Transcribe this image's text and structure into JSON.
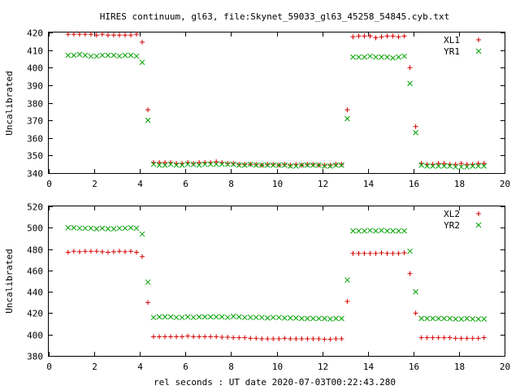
{
  "title": "HIRES continuum, gl63, file:Skynet_59033_gl63_45258_54845.cyb.txt",
  "xlabel": "rel seconds : UT date 2020-07-03T00:22:43.280",
  "colors": {
    "plus_series": "#d40000",
    "cross_series": "#00a000"
  },
  "chart_data": [
    {
      "type": "scatter",
      "ylabel": "Uncalibrated",
      "xlim": [
        0,
        20
      ],
      "ylim": [
        340,
        420
      ],
      "xticks": [
        0,
        2,
        4,
        6,
        8,
        10,
        12,
        14,
        16,
        18,
        20
      ],
      "yticks": [
        340,
        350,
        360,
        370,
        380,
        390,
        400,
        410,
        420
      ],
      "legend_position": "top-right",
      "series": [
        {
          "name": "XL1",
          "marker": "plus",
          "x": [
            0.85,
            1.1,
            1.35,
            1.6,
            1.85,
            2.1,
            2.35,
            2.6,
            2.85,
            3.1,
            3.35,
            3.6,
            3.85,
            4.1,
            4.35,
            4.6,
            4.85,
            5.1,
            5.35,
            5.6,
            5.85,
            6.1,
            6.35,
            6.6,
            6.85,
            7.1,
            7.35,
            7.6,
            7.85,
            8.1,
            8.35,
            8.6,
            8.85,
            9.1,
            9.35,
            9.6,
            9.85,
            10.1,
            10.35,
            10.6,
            10.85,
            11.1,
            11.35,
            11.6,
            11.85,
            12.1,
            12.35,
            12.6,
            12.85,
            13.1,
            13.35,
            13.6,
            13.85,
            14.1,
            14.35,
            14.6,
            14.85,
            15.1,
            15.35,
            15.6,
            15.85,
            16.1,
            16.35,
            16.6,
            16.85,
            17.1,
            17.35,
            17.6,
            17.85,
            18.1,
            18.35,
            18.6,
            18.85,
            19.1
          ],
          "y": [
            419,
            419,
            419,
            419,
            419,
            418.5,
            419,
            418.5,
            418.5,
            418.5,
            418.5,
            418.5,
            419,
            414.5,
            376,
            346,
            346,
            346,
            346,
            345.5,
            345.5,
            346,
            345.5,
            346,
            346,
            346,
            346.5,
            346,
            345.5,
            345.5,
            345,
            345,
            345,
            345,
            344.5,
            345,
            345,
            344.5,
            345,
            344.5,
            345,
            344.5,
            345,
            345,
            344.5,
            344.5,
            344.5,
            345,
            345,
            376,
            417.5,
            418,
            418,
            418,
            417,
            417.5,
            418,
            418,
            417.5,
            418,
            400,
            366.5,
            345.5,
            345,
            345,
            345.5,
            345.5,
            345,
            345,
            345.5,
            345,
            345,
            345.5,
            345.5
          ]
        },
        {
          "name": "YR1",
          "marker": "cross",
          "x": [
            0.85,
            1.1,
            1.35,
            1.6,
            1.85,
            2.1,
            2.35,
            2.6,
            2.85,
            3.1,
            3.35,
            3.6,
            3.85,
            4.1,
            4.35,
            4.6,
            4.85,
            5.1,
            5.35,
            5.6,
            5.85,
            6.1,
            6.35,
            6.6,
            6.85,
            7.1,
            7.35,
            7.6,
            7.85,
            8.1,
            8.35,
            8.6,
            8.85,
            9.1,
            9.35,
            9.6,
            9.85,
            10.1,
            10.35,
            10.6,
            10.85,
            11.1,
            11.35,
            11.6,
            11.85,
            12.1,
            12.35,
            12.6,
            12.85,
            13.1,
            13.35,
            13.6,
            13.85,
            14.1,
            14.35,
            14.6,
            14.85,
            15.1,
            15.35,
            15.6,
            15.85,
            16.1,
            16.35,
            16.6,
            16.85,
            17.1,
            17.35,
            17.6,
            17.85,
            18.1,
            18.35,
            18.6,
            18.85,
            19.1
          ],
          "y": [
            407,
            407,
            407.5,
            407,
            406.5,
            406.5,
            407,
            407,
            407,
            406.5,
            407,
            407,
            406.5,
            403,
            370,
            345,
            344.5,
            344.5,
            345,
            344.5,
            344.5,
            345,
            345,
            344.5,
            345,
            345,
            345,
            345,
            345,
            345,
            344.5,
            344.5,
            345,
            344.5,
            344.5,
            344.5,
            344.5,
            344.5,
            344.5,
            344,
            344,
            344.5,
            344.5,
            344.5,
            344.5,
            344,
            344,
            344.5,
            344.5,
            371,
            406,
            406,
            406,
            406.5,
            406,
            406,
            406,
            405.5,
            406,
            406.5,
            391,
            363,
            344.5,
            344,
            344,
            344,
            344,
            344,
            343.5,
            343.5,
            343.5,
            344,
            344,
            344
          ]
        }
      ]
    },
    {
      "type": "scatter",
      "ylabel": "Uncalibrated",
      "xlim": [
        0,
        20
      ],
      "ylim": [
        380,
        520
      ],
      "xticks": [
        0,
        2,
        4,
        6,
        8,
        10,
        12,
        14,
        16,
        18,
        20
      ],
      "yticks": [
        380,
        400,
        420,
        440,
        460,
        480,
        500,
        520
      ],
      "legend_position": "top-right",
      "series": [
        {
          "name": "XL2",
          "marker": "plus",
          "x": [
            0.85,
            1.1,
            1.35,
            1.6,
            1.85,
            2.1,
            2.35,
            2.6,
            2.85,
            3.1,
            3.35,
            3.6,
            3.85,
            4.1,
            4.35,
            4.6,
            4.85,
            5.1,
            5.35,
            5.6,
            5.85,
            6.1,
            6.35,
            6.6,
            6.85,
            7.1,
            7.35,
            7.6,
            7.85,
            8.1,
            8.35,
            8.6,
            8.85,
            9.1,
            9.35,
            9.6,
            9.85,
            10.1,
            10.35,
            10.6,
            10.85,
            11.1,
            11.35,
            11.6,
            11.85,
            12.1,
            12.35,
            12.6,
            12.85,
            13.1,
            13.35,
            13.6,
            13.85,
            14.1,
            14.35,
            14.6,
            14.85,
            15.1,
            15.35,
            15.6,
            15.85,
            16.1,
            16.35,
            16.6,
            16.85,
            17.1,
            17.35,
            17.6,
            17.85,
            18.1,
            18.35,
            18.6,
            18.85,
            19.1
          ],
          "y": [
            477,
            478,
            477.5,
            478,
            478,
            478,
            477.5,
            477,
            477.5,
            478,
            477.5,
            478,
            477,
            473,
            430,
            398,
            398,
            398,
            398,
            398,
            398,
            398.5,
            398,
            398,
            398,
            398,
            398,
            397.5,
            397.5,
            397,
            397,
            397,
            396.5,
            396.5,
            396,
            396,
            396,
            396,
            396.5,
            396,
            396,
            396,
            396,
            396,
            396,
            395.5,
            395.5,
            396,
            396,
            431,
            476,
            476,
            476,
            476,
            476,
            476.5,
            476,
            476,
            476,
            476.5,
            457,
            420,
            397,
            397,
            397,
            397,
            397,
            397,
            396.5,
            396.5,
            396.5,
            396.5,
            396.5,
            397
          ]
        },
        {
          "name": "YR2",
          "marker": "cross",
          "x": [
            0.85,
            1.1,
            1.35,
            1.6,
            1.85,
            2.1,
            2.35,
            2.6,
            2.85,
            3.1,
            3.35,
            3.6,
            3.85,
            4.1,
            4.35,
            4.6,
            4.85,
            5.1,
            5.35,
            5.6,
            5.85,
            6.1,
            6.35,
            6.6,
            6.85,
            7.1,
            7.35,
            7.6,
            7.85,
            8.1,
            8.35,
            8.6,
            8.85,
            9.1,
            9.35,
            9.6,
            9.85,
            10.1,
            10.35,
            10.6,
            10.85,
            11.1,
            11.35,
            11.6,
            11.85,
            12.1,
            12.35,
            12.6,
            12.85,
            13.1,
            13.35,
            13.6,
            13.85,
            14.1,
            14.35,
            14.6,
            14.85,
            15.1,
            15.35,
            15.6,
            15.85,
            16.1,
            16.35,
            16.6,
            16.85,
            17.1,
            17.35,
            17.6,
            17.85,
            18.1,
            18.35,
            18.6,
            18.85,
            19.1
          ],
          "y": [
            500,
            500,
            499.5,
            499.5,
            499.5,
            499,
            499.5,
            499,
            499,
            499.5,
            499.5,
            500,
            499.5,
            494,
            449,
            416,
            416.5,
            416.5,
            416.5,
            416,
            416,
            416.5,
            416,
            416.5,
            416.5,
            416.5,
            416.5,
            416.5,
            416,
            417,
            416.5,
            416,
            416,
            416,
            416,
            415.5,
            416,
            416,
            415.5,
            415.5,
            415.5,
            415,
            415,
            415,
            415,
            415,
            414.5,
            415,
            415,
            451,
            497,
            497,
            497,
            497.5,
            497,
            497.5,
            497,
            497,
            497,
            497,
            478,
            440,
            415,
            415,
            415,
            415,
            415,
            415,
            414.5,
            414.5,
            415,
            414.5,
            414.5,
            414.5
          ]
        }
      ]
    }
  ]
}
